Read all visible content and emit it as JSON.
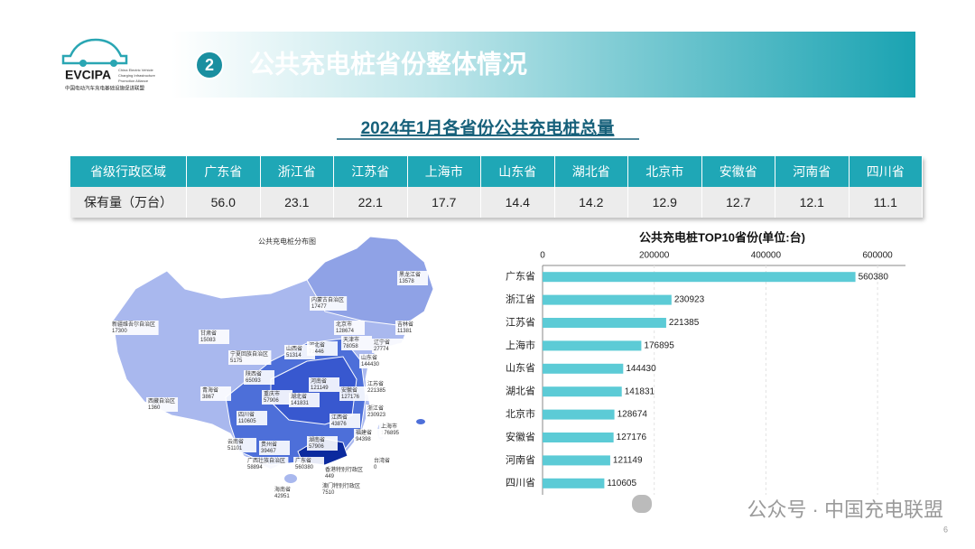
{
  "header": {
    "logo": "EVCIPA",
    "logo_en": [
      "China Electric Vehicle",
      "Charging Infrastructure",
      "Promotion Alliance"
    ],
    "logo_cn": "中国电动汽车充电基础设施促进联盟",
    "number": "2",
    "title": "公共充电桩省份整体情况"
  },
  "subtitle": "2024年1月各省份公共充电桩总量",
  "table": {
    "header": [
      "省级行政区域",
      "广东省",
      "浙江省",
      "江苏省",
      "上海市",
      "山东省",
      "湖北省",
      "北京市",
      "安徽省",
      "河南省",
      "四川省"
    ],
    "rows": [
      [
        "保有量（万台）",
        "56.0",
        "23.1",
        "22.1",
        "17.7",
        "14.4",
        "14.2",
        "12.9",
        "12.7",
        "12.1",
        "11.1"
      ]
    ]
  },
  "map": {
    "title": "公共充电桩分布图",
    "labels": [
      {
        "name": "黑龙江省",
        "value": "13578"
      },
      {
        "name": "内蒙古自治区",
        "value": "17477"
      },
      {
        "name": "吉林省",
        "value": "11381"
      },
      {
        "name": "新疆维吾尔自治区",
        "value": "17300"
      },
      {
        "name": "甘肃省",
        "value": "15083"
      },
      {
        "name": "北京市",
        "value": "128674"
      },
      {
        "name": "天津市",
        "value": "78058"
      },
      {
        "name": "河北省",
        "value": "71446"
      },
      {
        "name": "辽宁省",
        "value": "27774"
      },
      {
        "name": "山西省",
        "value": "51314"
      },
      {
        "name": "宁夏回族自治区",
        "value": "5175"
      },
      {
        "name": "山东省",
        "value": "144430"
      },
      {
        "name": "陕西省",
        "value": "65093"
      },
      {
        "name": "河南省",
        "value": "121149"
      },
      {
        "name": "青海省",
        "value": "3867"
      },
      {
        "name": "安徽省",
        "value": "127176"
      },
      {
        "name": "江苏省",
        "value": "221385"
      },
      {
        "name": "重庆市",
        "value": "57906"
      },
      {
        "name": "湖北省",
        "value": "141831"
      },
      {
        "name": "西藏自治区",
        "value": "1360"
      },
      {
        "name": "四川省",
        "value": "110605"
      },
      {
        "name": "浙江省",
        "value": "230923"
      },
      {
        "name": "江西省",
        "value": "43876"
      },
      {
        "name": "上海市",
        "value": "176895"
      },
      {
        "name": "福建省",
        "value": "94398"
      },
      {
        "name": "云南省",
        "value": "51101"
      },
      {
        "name": "贵州省",
        "value": "39467"
      },
      {
        "name": "湖南省",
        "value": "57906"
      },
      {
        "name": "广西壮族自治区",
        "value": "58894"
      },
      {
        "name": "广东省",
        "value": "560380"
      },
      {
        "name": "香港特别行政区",
        "value": "449"
      },
      {
        "name": "台湾省",
        "value": "0"
      },
      {
        "name": "海南省",
        "value": "42951"
      },
      {
        "name": "澳门特别行政区",
        "value": "7510"
      }
    ]
  },
  "chart_data": {
    "type": "bar",
    "orientation": "horizontal",
    "title": "公共充电桩TOP10省份(单位:台)",
    "categories": [
      "广东省",
      "浙江省",
      "江苏省",
      "上海市",
      "山东省",
      "湖北省",
      "北京市",
      "安徽省",
      "河南省",
      "四川省"
    ],
    "values": [
      560380,
      230923,
      221385,
      176895,
      144430,
      141831,
      128674,
      127176,
      121149,
      110605
    ],
    "color": "#5ccbd6",
    "xlim": [
      0,
      650000
    ],
    "xticks": [
      0,
      200000,
      400000,
      600000
    ],
    "grid": true
  },
  "footer": {
    "watermark": "公众号 · 中国充电联盟",
    "page": "6"
  }
}
